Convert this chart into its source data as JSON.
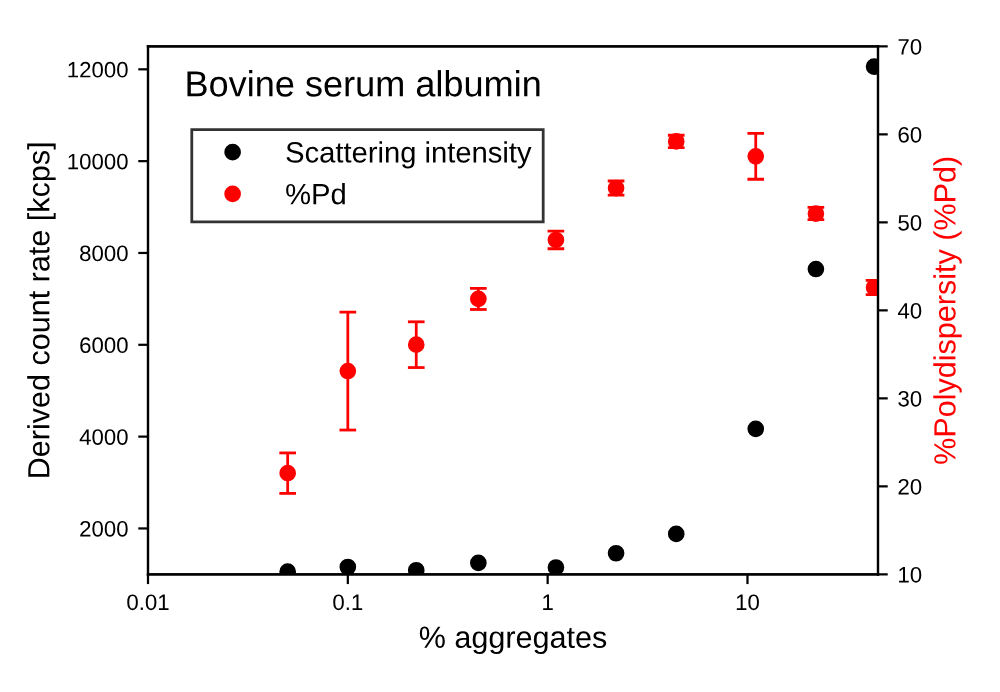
{
  "chart_data": {
    "type": "scatter",
    "title": "Bovine serum albumin",
    "xlabel": "% aggregates",
    "ylabel": "Derived count rate [kcps]",
    "y2label": "%Polydispersity (%Pd)",
    "log": "x",
    "x": [
      0.05,
      0.1,
      0.22,
      0.45,
      1.1,
      2.2,
      4.4,
      11,
      22,
      43
    ],
    "xlim": [
      0.01,
      45
    ],
    "xticks": [
      0.01,
      0.1,
      1,
      10
    ],
    "ylim": [
      1000,
      12500
    ],
    "yticks": [
      2000,
      4000,
      6000,
      8000,
      10000,
      12000
    ],
    "y2lim": [
      10,
      70
    ],
    "y2ticks": [
      10,
      20,
      30,
      40,
      50,
      60,
      70
    ],
    "marker": "circle",
    "legend": "top left",
    "grid": false,
    "series": [
      {
        "name": "Scattering intensity",
        "color": "#000000",
        "values": [
          1060,
          1160,
          1090,
          1250,
          1150,
          1460,
          1880,
          4170,
          7650,
          12060
        ]
      },
      {
        "name": "%Pd",
        "color": "#ff0000",
        "axis": "y2",
        "values": [
          21.5,
          33.1,
          36.1,
          41.3,
          48.0,
          53.9,
          59.2,
          57.5,
          51.0,
          42.6
        ],
        "errors": [
          2.3,
          6.7,
          2.6,
          1.2,
          1.0,
          0.8,
          0.7,
          2.6,
          0.7,
          0.8
        ]
      }
    ]
  }
}
